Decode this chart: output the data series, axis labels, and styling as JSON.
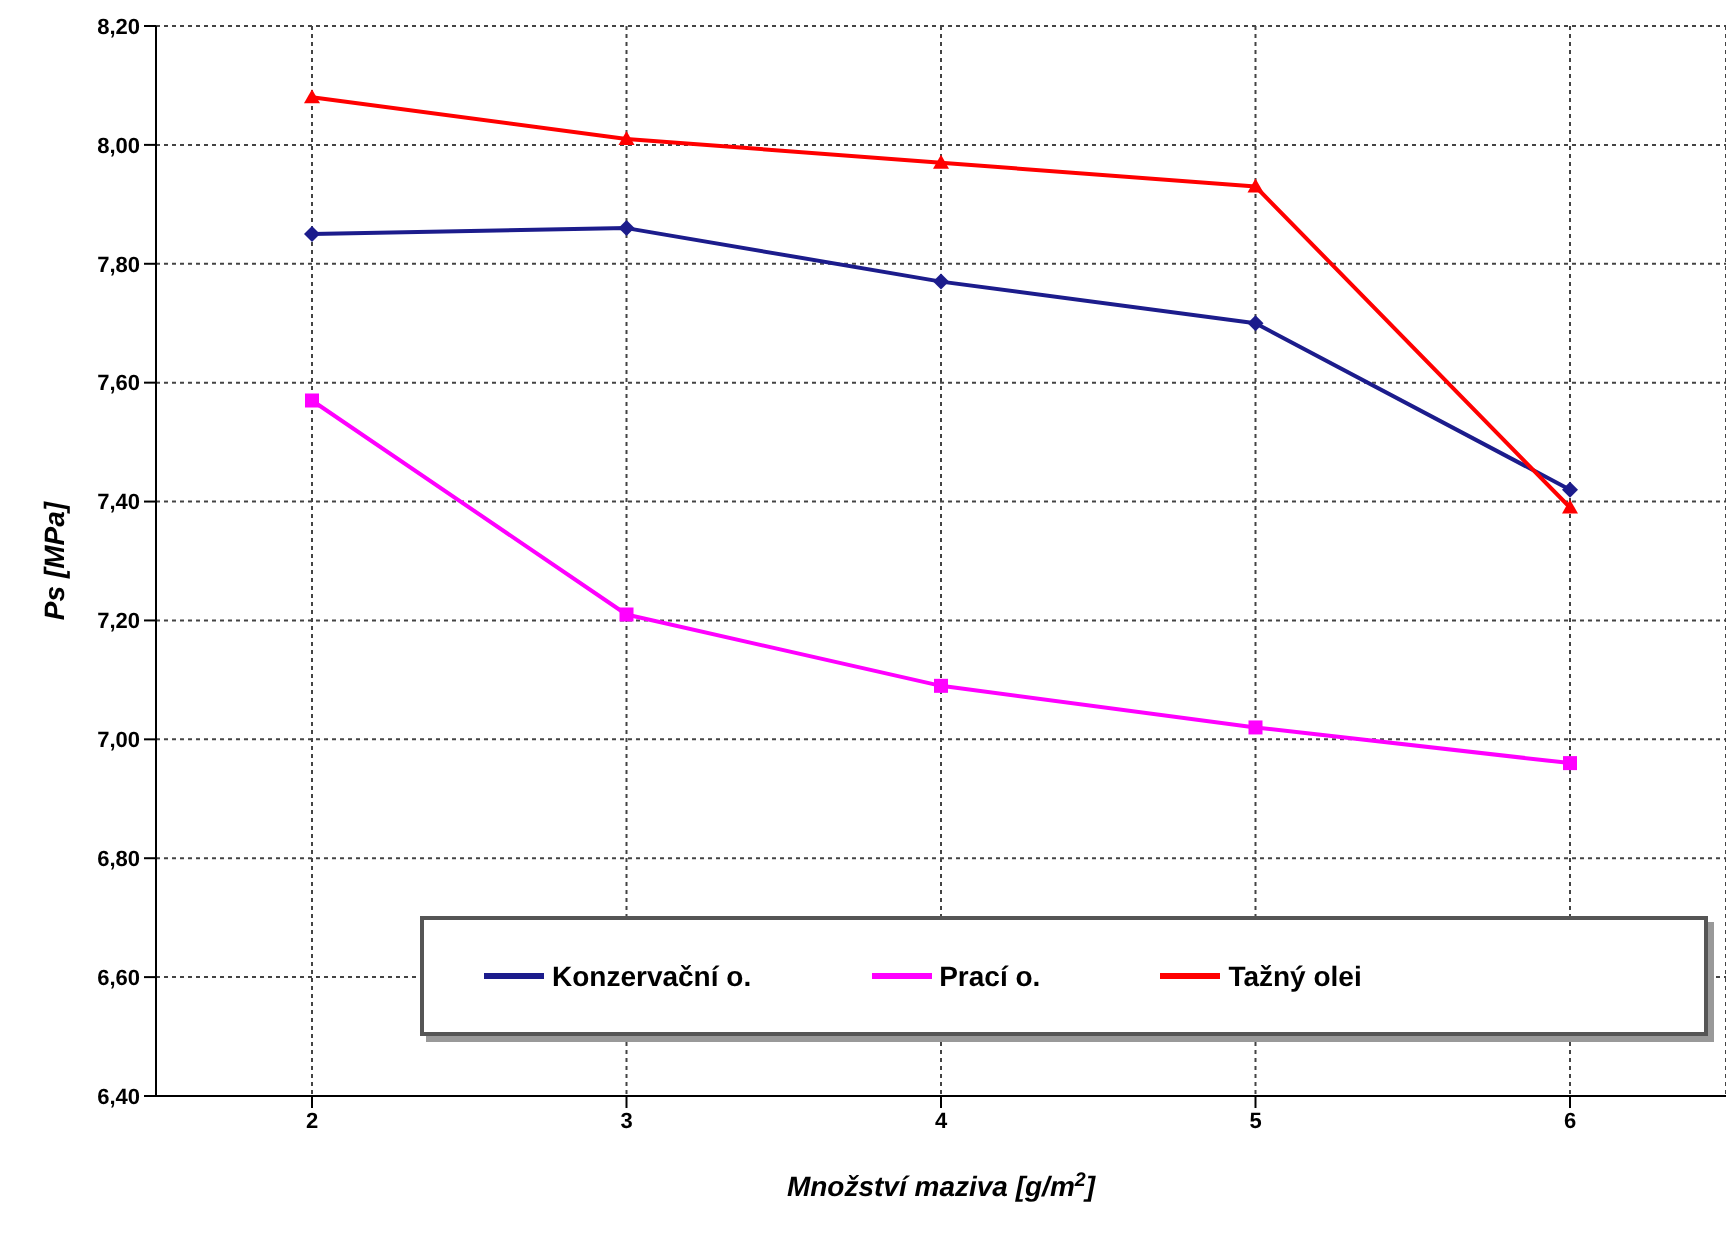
{
  "chart_data": {
    "type": "line",
    "xlabel": "Množství maziva [g/m$^{2}$]",
    "ylabel": "Ps [MPa]",
    "categories": [
      "2",
      "3",
      "4",
      "5",
      "6"
    ],
    "series": [
      {
        "name": "Konzervační o.",
        "color": "#1c1c8c",
        "marker": "diamond",
        "values": [
          7.85,
          7.86,
          7.77,
          7.7,
          7.42
        ]
      },
      {
        "name": "Prací o.",
        "color": "#ff00ff",
        "marker": "square",
        "values": [
          7.57,
          7.21,
          7.09,
          7.02,
          6.96
        ]
      },
      {
        "name": "Tažný olei",
        "color": "#ff0000",
        "marker": "triangle",
        "values": [
          8.08,
          8.01,
          7.97,
          7.93,
          7.39
        ]
      }
    ],
    "ylim": [
      6.4,
      8.2
    ],
    "yticks": [
      {
        "value": 6.4,
        "label": "6,40"
      },
      {
        "value": 6.6,
        "label": "6,60"
      },
      {
        "value": 6.8,
        "label": "6,80"
      },
      {
        "value": 7.0,
        "label": "7,00"
      },
      {
        "value": 7.2,
        "label": "7,20"
      },
      {
        "value": 7.4,
        "label": "7,40"
      },
      {
        "value": 7.6,
        "label": "7,60"
      },
      {
        "value": 7.8,
        "label": "7,80"
      },
      {
        "value": 8.0,
        "label": "8,00"
      },
      {
        "value": 8.2,
        "label": "8,20"
      }
    ],
    "grid": true,
    "legend": "bottom",
    "line_style": "solid"
  }
}
